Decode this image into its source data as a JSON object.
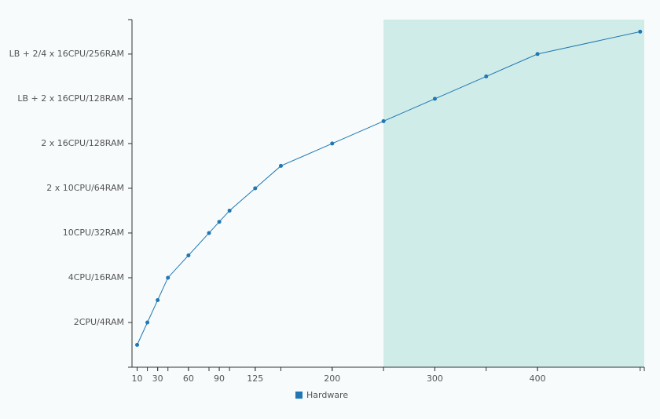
{
  "chart_data": {
    "type": "line",
    "x": [
      10,
      20,
      30,
      40,
      60,
      80,
      90,
      100,
      125,
      150,
      200,
      250,
      300,
      350,
      400,
      500
    ],
    "series": [
      {
        "name": "Hardware",
        "color": "#1f77b4",
        "values": [
          0.5,
          1,
          1.5,
          2,
          2.5,
          3,
          3.25,
          3.5,
          4,
          4.5,
          5,
          5.5,
          6,
          6.5,
          7,
          7.5
        ]
      }
    ],
    "xlim": [
      5,
      504
    ],
    "xticks": [
      10,
      30,
      60,
      90,
      125,
      200,
      300,
      400
    ],
    "ylim": [
      0,
      7.77
    ],
    "yticks": [
      {
        "value": 1,
        "label": "2CPU/4RAM"
      },
      {
        "value": 2,
        "label": "4CPU/16RAM"
      },
      {
        "value": 3,
        "label": "10CPU/32RAM"
      },
      {
        "value": 4,
        "label": "2 x 10CPU/64RAM"
      },
      {
        "value": 5,
        "label": "2 x 16CPU/128RAM"
      },
      {
        "value": 6,
        "label": "LB + 2 x 16CPU/128RAM"
      },
      {
        "value": 7,
        "label": "LB + 2/4 x 16CPU/256RAM"
      }
    ],
    "shaded_region": {
      "x": [
        250,
        504
      ],
      "color": "#d0ece8"
    },
    "legend": "bottom"
  }
}
